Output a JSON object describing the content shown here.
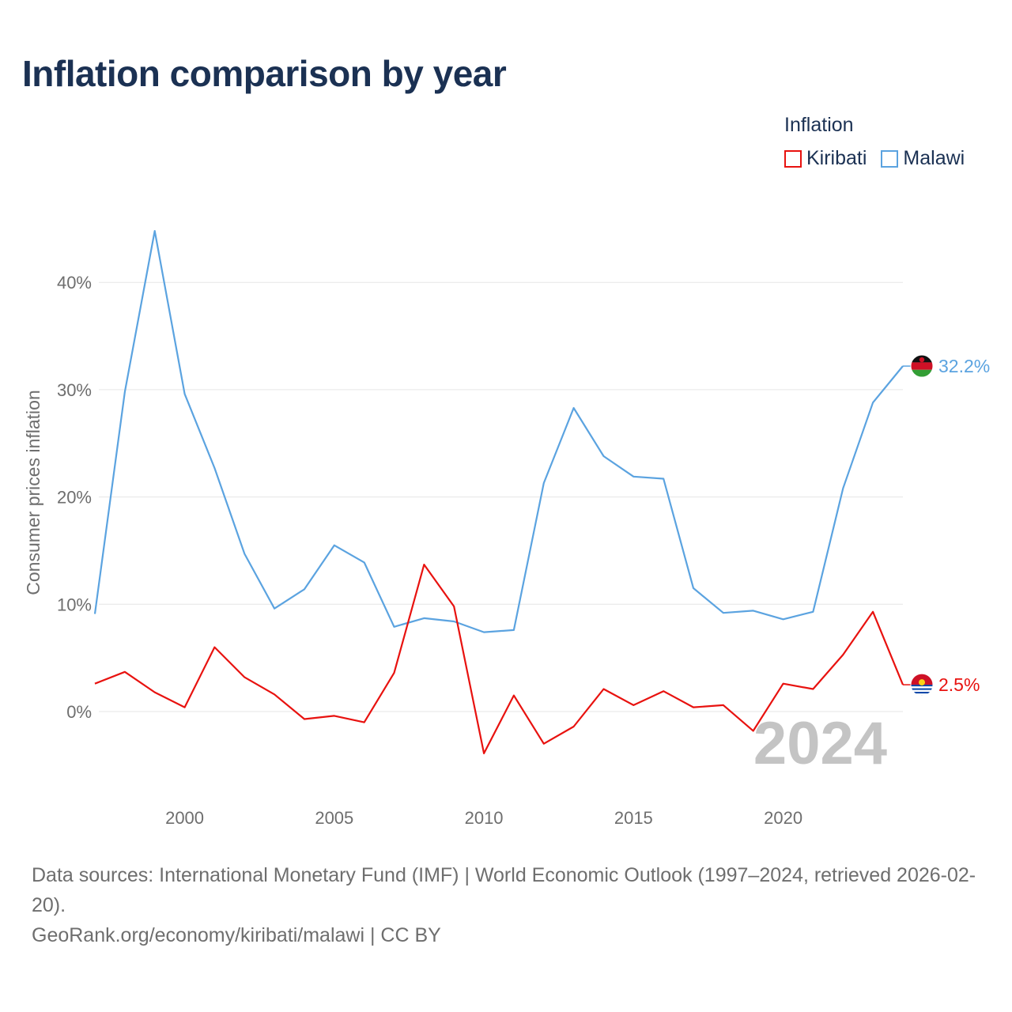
{
  "title": "Inflation comparison by year",
  "legend": {
    "title": "Inflation",
    "items": [
      {
        "name": "Kiribati",
        "color": "#e8120f"
      },
      {
        "name": "Malawi",
        "color": "#5ba3e0"
      }
    ]
  },
  "footer": {
    "sources": "Data sources: International Monetary Fund (IMF) | World Economic Outlook (1997–2024, retrieved 2026-02-20).",
    "link": "GeoRank.org/economy/kiribati/malawi | CC BY"
  },
  "chart_data": {
    "type": "line",
    "title": "Inflation comparison by year",
    "ylabel": "Consumer prices inflation",
    "xlabel": "",
    "x": [
      1997,
      1998,
      1999,
      2000,
      2001,
      2002,
      2003,
      2004,
      2005,
      2006,
      2007,
      2008,
      2009,
      2010,
      2011,
      2012,
      2013,
      2014,
      2015,
      2016,
      2017,
      2018,
      2019,
      2020,
      2021,
      2022,
      2023,
      2024
    ],
    "xlim": [
      1997,
      2024
    ],
    "ylim": [
      -8,
      47
    ],
    "yticks": [
      0,
      10,
      20,
      30,
      40
    ],
    "ytick_labels": [
      "0%",
      "10%",
      "20%",
      "30%",
      "40%"
    ],
    "xticks": [
      2000,
      2005,
      2010,
      2015,
      2020
    ],
    "xtick_labels": [
      "2000",
      "2005",
      "2010",
      "2015",
      "2020"
    ],
    "grid": true,
    "year_watermark": "2024",
    "series": [
      {
        "name": "Malawi",
        "color": "#5ba3e0",
        "end_label": "32.2%",
        "values": [
          9.1,
          29.8,
          44.8,
          29.6,
          22.7,
          14.7,
          9.6,
          11.4,
          15.5,
          13.9,
          7.9,
          8.7,
          8.4,
          7.4,
          7.6,
          21.3,
          28.3,
          23.8,
          21.9,
          21.7,
          11.5,
          9.2,
          9.4,
          8.6,
          9.3,
          20.8,
          28.8,
          32.2
        ]
      },
      {
        "name": "Kiribati",
        "color": "#e8120f",
        "end_label": "2.5%",
        "values": [
          2.6,
          3.7,
          1.8,
          0.4,
          6.0,
          3.2,
          1.6,
          -0.7,
          -0.4,
          -1.0,
          3.6,
          13.7,
          9.8,
          -3.9,
          1.5,
          -3.0,
          -1.4,
          2.1,
          0.6,
          1.9,
          0.4,
          0.6,
          -1.8,
          2.6,
          2.1,
          5.3,
          9.3,
          2.5
        ]
      }
    ]
  }
}
